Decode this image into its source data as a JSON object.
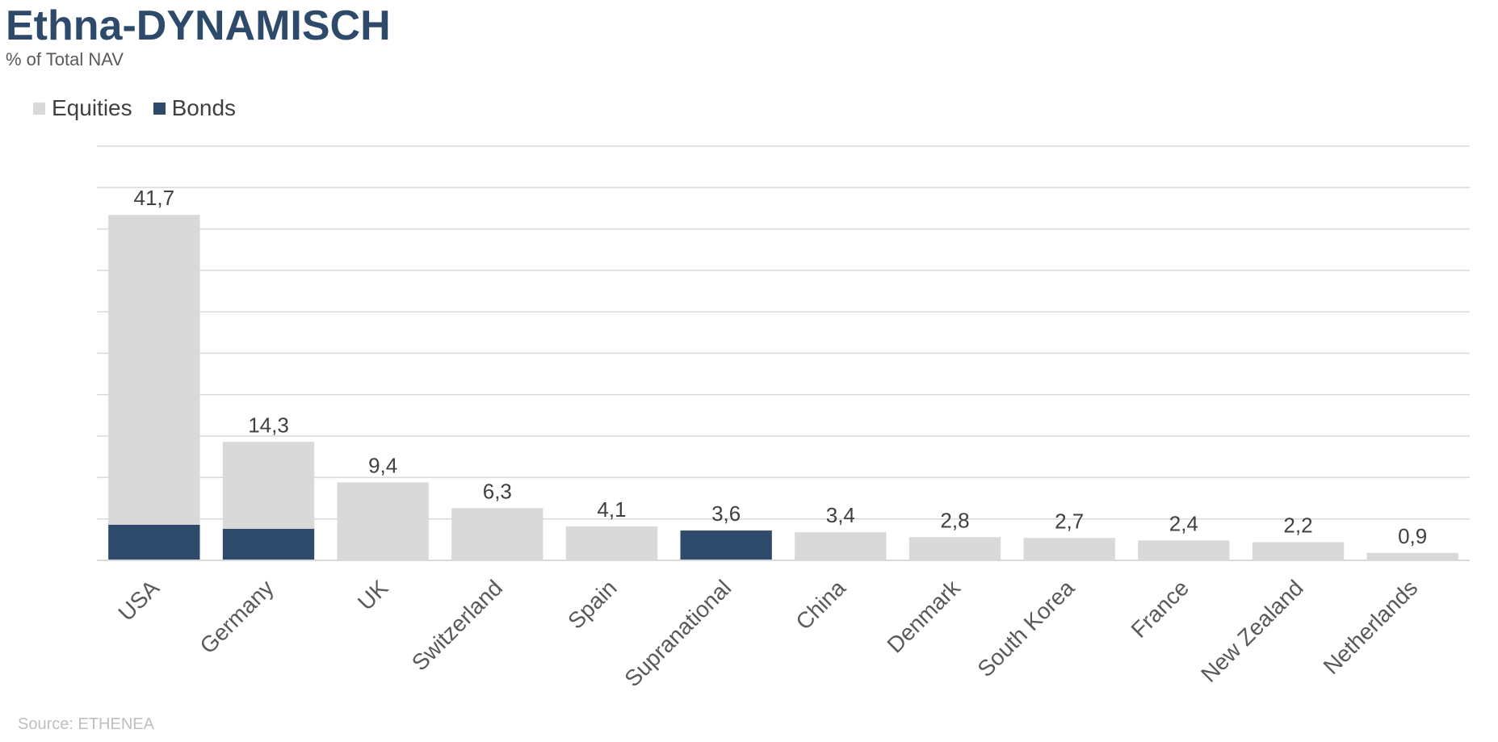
{
  "chart_data": {
    "type": "bar",
    "stacked": true,
    "title": "Ethna-DYNAMISCH",
    "subtitle": "% of Total NAV",
    "categories": [
      "USA",
      "Germany",
      "UK",
      "Switzerland",
      "Spain",
      "Supranational",
      "China",
      "Denmark",
      "South Korea",
      "France",
      "New Zealand",
      "Netherlands"
    ],
    "series": [
      {
        "name": "Bonds",
        "color": "#2e4a6b",
        "values": [
          4.3,
          3.8,
          0,
          0,
          0,
          3.6,
          0,
          0,
          0,
          0,
          0,
          0
        ]
      },
      {
        "name": "Equities",
        "color": "#d9d9d9",
        "values": [
          37.4,
          10.5,
          9.4,
          6.3,
          4.1,
          0,
          3.4,
          2.8,
          2.7,
          2.4,
          2.2,
          0.9
        ]
      }
    ],
    "totals": [
      "41,7",
      "14,3",
      "9,4",
      "6,3",
      "4,1",
      "3,6",
      "3,4",
      "2,8",
      "2,7",
      "2,4",
      "2,2",
      "0,9"
    ],
    "legend_order": [
      "Equities",
      "Bonds"
    ],
    "legend_position": "top-left",
    "ylim": [
      0,
      50
    ],
    "gridlines": true,
    "source": "Source: ETHENEA"
  }
}
